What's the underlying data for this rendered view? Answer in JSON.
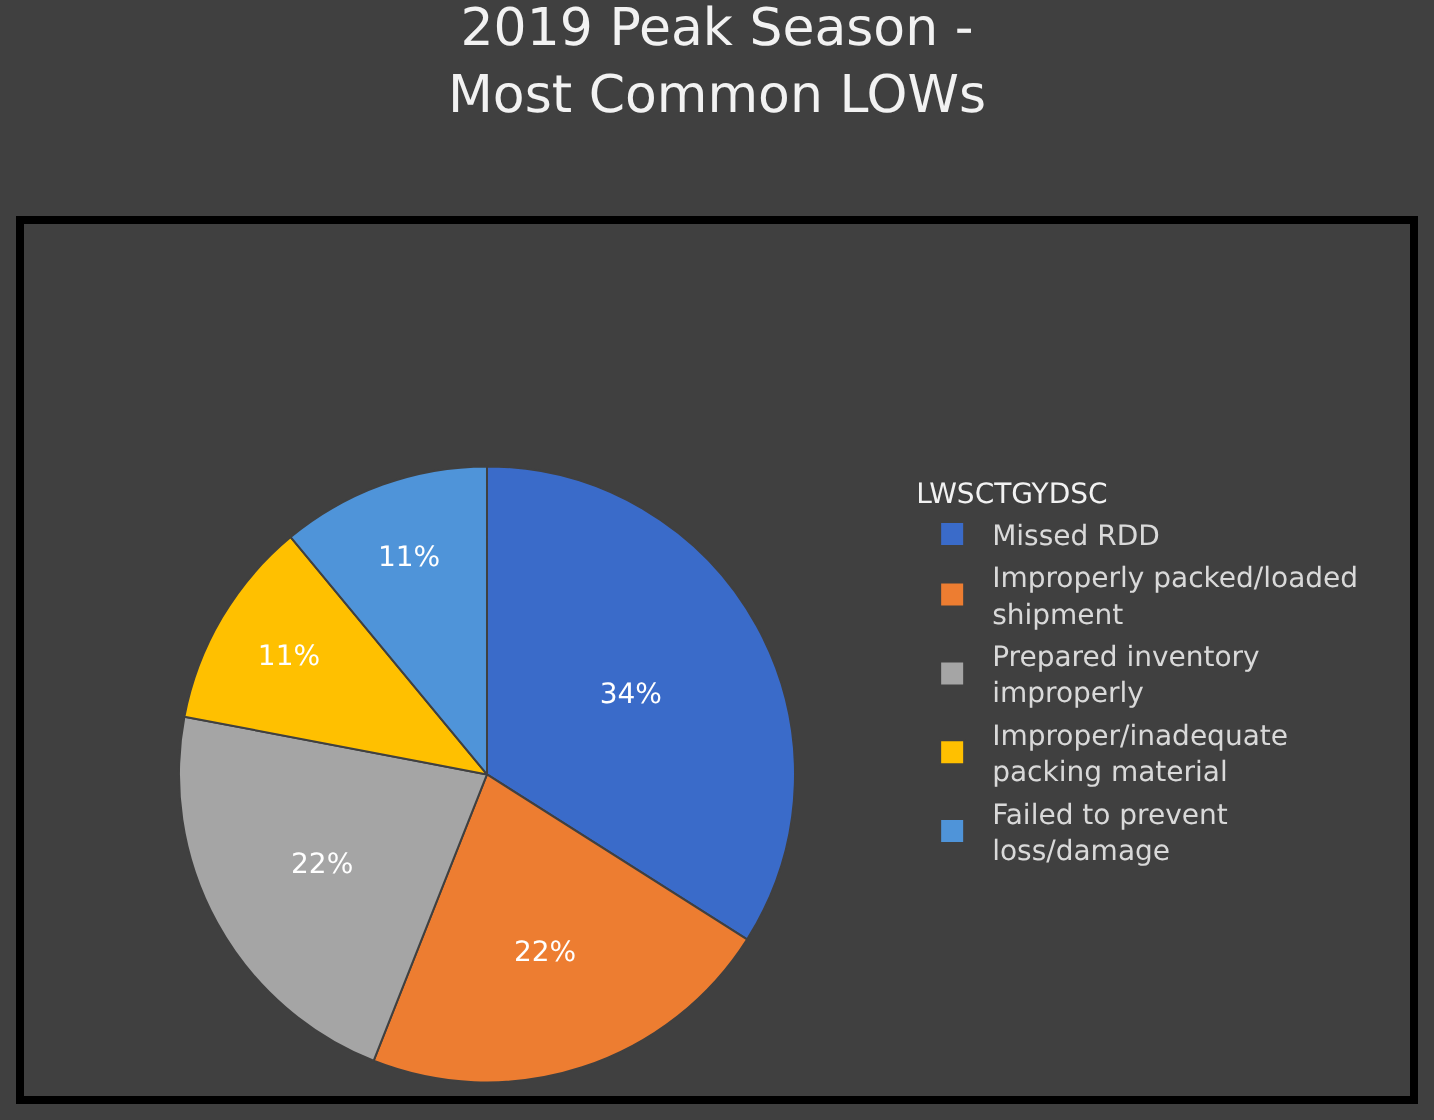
{
  "chart_data": {
    "type": "pie",
    "title": "2019 Peak Season -\nMost Common LOWs",
    "legend_title": "LWSCTGYDSC",
    "legend": "right",
    "categories": [
      "Missed RDD",
      "Improperly packed/loaded shipment",
      "Prepared inventory improperly",
      "Improper/inadequate packing material",
      "Failed to prevent loss/damage"
    ],
    "values": [
      34,
      22,
      22,
      11,
      11
    ],
    "value_labels": [
      "34%",
      "22%",
      "22%",
      "11%",
      "11%"
    ],
    "colors": [
      "#3a6bc9",
      "#ed7d31",
      "#a5a5a5",
      "#ffc000",
      "#4f94d9"
    ]
  }
}
